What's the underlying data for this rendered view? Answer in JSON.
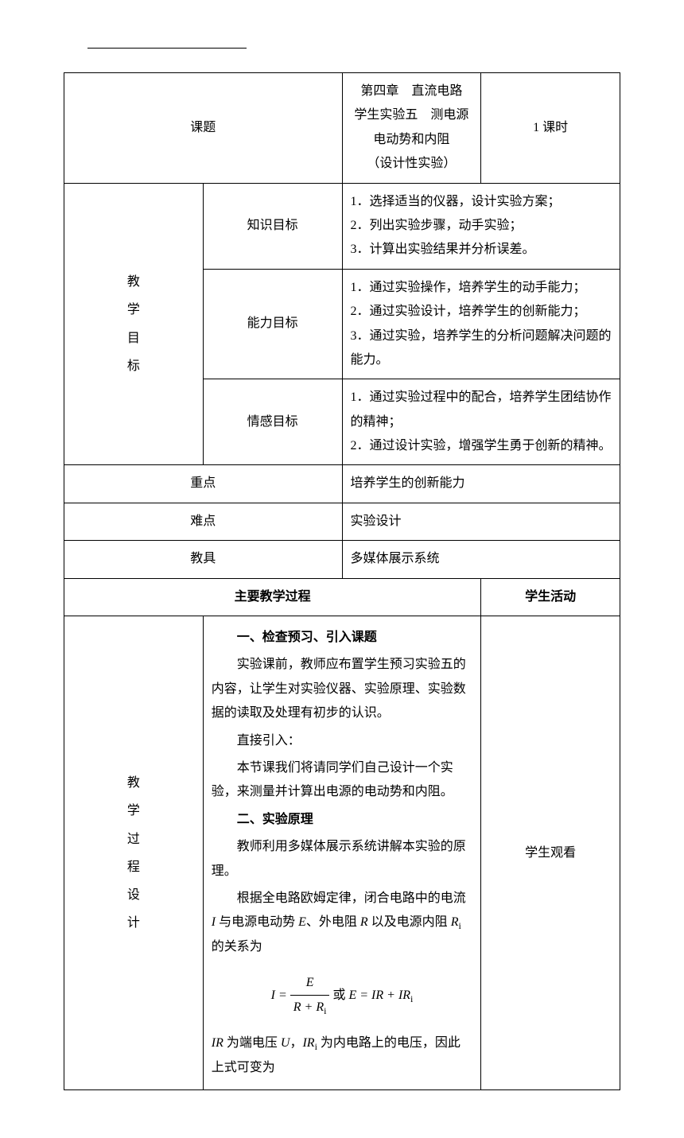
{
  "header": {
    "topic_label": "课题",
    "topic_line1": "第四章　直流电路　　学生实验五　测电源电动势和内阻",
    "topic_line2": "（设计性实验）",
    "duration": "1 课时"
  },
  "objectives": {
    "group_label": "教学目标",
    "knowledge": {
      "label": "知识目标",
      "items": [
        "1．选择适当的仪器，设计实验方案；",
        "2．列出实验步骤，动手实验；",
        "3．计算出实验结果并分析误差。"
      ]
    },
    "ability": {
      "label": "能力目标",
      "items": [
        "1．通过实验操作，培养学生的动手能力；",
        "2．通过实验设计，培养学生的创新能力；",
        "3．通过实验，培养学生的分析问题解决问题的能力。"
      ]
    },
    "emotion": {
      "label": "情感目标",
      "items": [
        "1．通过实验过程中的配合，培养学生团结协作的精神；",
        "2．通过设计实验，增强学生勇于创新的精神。"
      ]
    }
  },
  "key_point": {
    "label": "重点",
    "text": "培养学生的创新能力"
  },
  "difficulty": {
    "label": "难点",
    "text": "实验设计"
  },
  "tools": {
    "label": "教具",
    "text": "多媒体展示系统"
  },
  "process_header": {
    "main": "主要教学过程",
    "activity": "学生活动"
  },
  "process": {
    "group_label": "教学过程设计",
    "section1_title": "一、检查预习、引入课题",
    "section1_p1": "实验课前，教师应布置学生预习实验五的内容，让学生对实验仪器、实验原理、实验数据的读取及处理有初步的认识。",
    "section1_p2": "直接引入：",
    "section1_p3": "本节课我们将请同学们自己设计一个实验，来测量并计算出电源的电动势和内阻。",
    "section2_title": "二、实验原理",
    "section2_p1": "教师利用多媒体展示系统讲解本实验的原理。",
    "section2_p2_pre": "根据全电路欧姆定律，闭合电路中的电流 ",
    "section2_p2_mid1": " 与电源电动势 ",
    "section2_p2_mid2": "、外电阻 ",
    "section2_p2_mid3": " 以及电源内阻 ",
    "section2_p2_post": " 的关系为",
    "formula_or": "或",
    "section2_p3_pre": " 为端电压 ",
    "section2_p3_mid": "，",
    "section2_p3_post": " 为内电路上的电压，因此上式可变为",
    "activity_text": "学生观看",
    "symbols": {
      "I": "I",
      "E": "E",
      "R": "R",
      "Ri": "R",
      "i": "i",
      "U": "U",
      "IR": "IR",
      "IRi": "IR"
    }
  }
}
